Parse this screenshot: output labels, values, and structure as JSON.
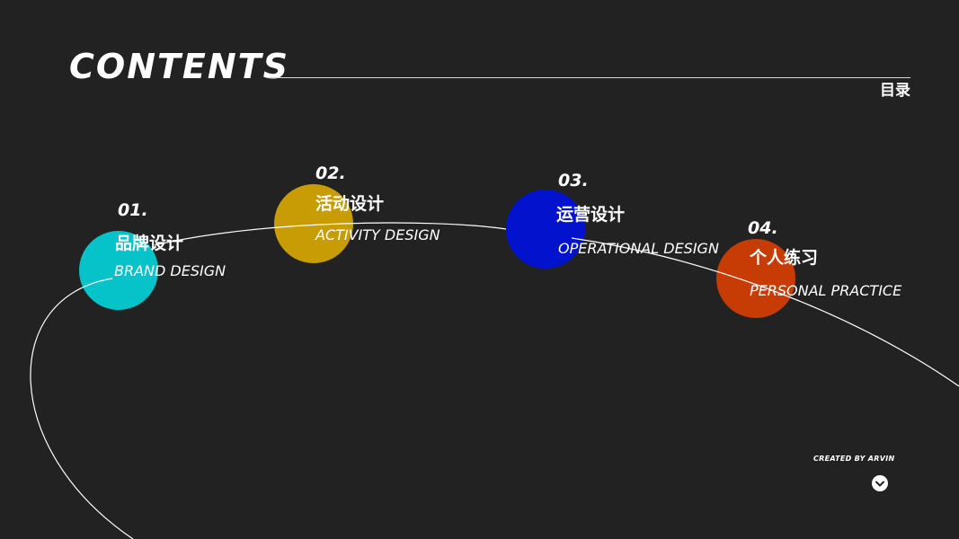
{
  "header": {
    "title": "CONTENTS",
    "subtitle": "目录"
  },
  "items": [
    {
      "number": "01.",
      "title_cn": "品牌设计",
      "title_en": "BRAND DESIGN",
      "color": "#06c3c9"
    },
    {
      "number": "02.",
      "title_cn": "活动设计",
      "title_en": "ACTIVITY DESIGN",
      "color": "#c79c05"
    },
    {
      "number": "03.",
      "title_cn": "运营设计",
      "title_en": "OPERATIONAL DESIGN",
      "color": "#0313cd"
    },
    {
      "number": "04.",
      "title_cn": "个人练习",
      "title_en": "PERSONAL PRACTICE",
      "color": "#c73c04"
    }
  ],
  "footer": {
    "credit": "CREATED BY ARVIN",
    "next_icon": "chevron-down-icon"
  }
}
